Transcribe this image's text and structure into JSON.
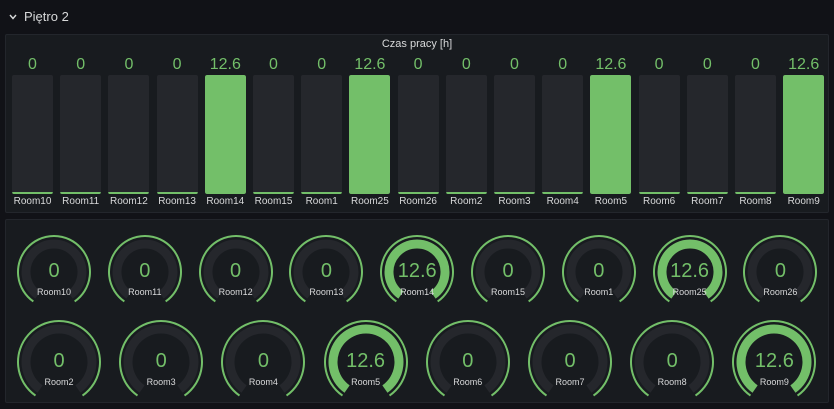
{
  "row": {
    "title": "Piętro 2"
  },
  "bar_panel": {
    "title": "Czas pracy [h]",
    "max": 12.6,
    "items": [
      {
        "label": "Room10",
        "value": "0",
        "fraction": 0
      },
      {
        "label": "Room11",
        "value": "0",
        "fraction": 0
      },
      {
        "label": "Room12",
        "value": "0",
        "fraction": 0
      },
      {
        "label": "Room13",
        "value": "0",
        "fraction": 0
      },
      {
        "label": "Room14",
        "value": "12.6",
        "fraction": 1
      },
      {
        "label": "Room15",
        "value": "0",
        "fraction": 0
      },
      {
        "label": "Room1",
        "value": "0",
        "fraction": 0
      },
      {
        "label": "Room25",
        "value": "12.6",
        "fraction": 1
      },
      {
        "label": "Room26",
        "value": "0",
        "fraction": 0
      },
      {
        "label": "Room2",
        "value": "0",
        "fraction": 0
      },
      {
        "label": "Room3",
        "value": "0",
        "fraction": 0
      },
      {
        "label": "Room4",
        "value": "0",
        "fraction": 0
      },
      {
        "label": "Room5",
        "value": "12.6",
        "fraction": 1
      },
      {
        "label": "Room6",
        "value": "0",
        "fraction": 0
      },
      {
        "label": "Room7",
        "value": "0",
        "fraction": 0
      },
      {
        "label": "Room8",
        "value": "0",
        "fraction": 0
      },
      {
        "label": "Room9",
        "value": "12.6",
        "fraction": 1
      }
    ]
  },
  "gauge_panel": {
    "rows": [
      [
        {
          "label": "Room10",
          "value": "0",
          "fraction": 0
        },
        {
          "label": "Room11",
          "value": "0",
          "fraction": 0
        },
        {
          "label": "Room12",
          "value": "0",
          "fraction": 0
        },
        {
          "label": "Room13",
          "value": "0",
          "fraction": 0
        },
        {
          "label": "Room14",
          "value": "12.6",
          "fraction": 1
        },
        {
          "label": "Room15",
          "value": "0",
          "fraction": 0
        },
        {
          "label": "Room1",
          "value": "0",
          "fraction": 0
        },
        {
          "label": "Room25",
          "value": "12.6",
          "fraction": 1
        },
        {
          "label": "Room26",
          "value": "0",
          "fraction": 0
        }
      ],
      [
        {
          "label": "Room2",
          "value": "0",
          "fraction": 0
        },
        {
          "label": "Room3",
          "value": "0",
          "fraction": 0
        },
        {
          "label": "Room4",
          "value": "0",
          "fraction": 0
        },
        {
          "label": "Room5",
          "value": "12.6",
          "fraction": 1
        },
        {
          "label": "Room6",
          "value": "0",
          "fraction": 0
        },
        {
          "label": "Room7",
          "value": "0",
          "fraction": 0
        },
        {
          "label": "Room8",
          "value": "0",
          "fraction": 0
        },
        {
          "label": "Room9",
          "value": "12.6",
          "fraction": 1
        }
      ]
    ]
  },
  "colors": {
    "value": "#73bf69",
    "track": "#25272c",
    "panel": "#181b1f",
    "background": "#111217"
  },
  "icons": {
    "row_toggle": "chevron-down-icon"
  }
}
